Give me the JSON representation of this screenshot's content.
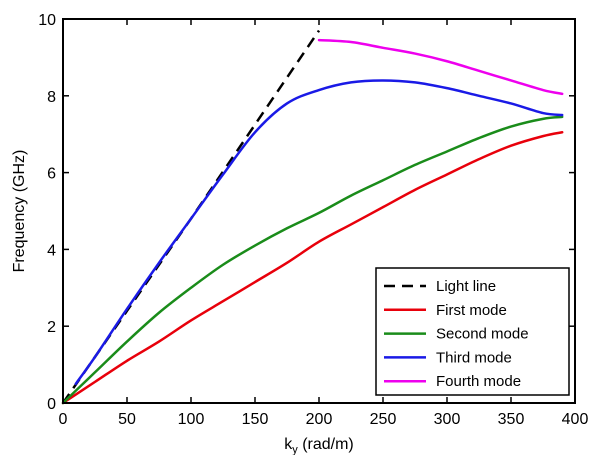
{
  "chart_data": {
    "type": "line",
    "xlabel": "k",
    "xlabel_sub": "y",
    "xlabel_unit": " (rad/m)",
    "ylabel": "Frequency (GHz)",
    "xlim": [
      0,
      400
    ],
    "ylim": [
      0,
      10
    ],
    "xticks": [
      "0",
      "50",
      "100",
      "150",
      "200",
      "250",
      "300",
      "350",
      "400"
    ],
    "yticks": [
      "0",
      "2",
      "4",
      "6",
      "8",
      "10"
    ],
    "grid": false,
    "legend_position": "bottom-right",
    "series": [
      {
        "name": "Light line",
        "color": "#000000",
        "dashed": true,
        "x": [
          0,
          50,
          100,
          150,
          200
        ],
        "y": [
          0,
          2.4,
          4.8,
          7.25,
          9.7
        ]
      },
      {
        "name": "First mode",
        "color": "#e8000b",
        "dashed": false,
        "x": [
          0,
          25,
          50,
          75,
          100,
          125,
          150,
          175,
          200,
          225,
          250,
          275,
          300,
          325,
          350,
          375,
          390
        ],
        "y": [
          0,
          0.55,
          1.1,
          1.6,
          2.15,
          2.65,
          3.15,
          3.65,
          4.2,
          4.65,
          5.1,
          5.55,
          5.95,
          6.35,
          6.7,
          6.95,
          7.05
        ]
      },
      {
        "name": "Second mode",
        "color": "#1a8c1a",
        "dashed": false,
        "x": [
          0,
          25,
          50,
          75,
          100,
          125,
          150,
          175,
          200,
          225,
          250,
          275,
          300,
          325,
          350,
          375,
          390
        ],
        "y": [
          0,
          0.8,
          1.6,
          2.35,
          3.0,
          3.6,
          4.1,
          4.55,
          4.95,
          5.4,
          5.8,
          6.2,
          6.55,
          6.9,
          7.2,
          7.4,
          7.45
        ]
      },
      {
        "name": "Third mode",
        "color": "#1a1ae6",
        "dashed": false,
        "x": [
          10,
          25,
          50,
          75,
          100,
          125,
          150,
          175,
          200,
          225,
          250,
          275,
          300,
          325,
          350,
          375,
          390
        ],
        "y": [
          0.5,
          1.2,
          2.45,
          3.65,
          4.8,
          5.95,
          7.05,
          7.8,
          8.15,
          8.35,
          8.4,
          8.35,
          8.2,
          8.0,
          7.8,
          7.55,
          7.5
        ]
      },
      {
        "name": "Fourth mode",
        "color": "#ee00ee",
        "dashed": false,
        "x": [
          200,
          225,
          250,
          275,
          300,
          325,
          350,
          375,
          390
        ],
        "y": [
          9.45,
          9.4,
          9.25,
          9.1,
          8.9,
          8.65,
          8.4,
          8.15,
          8.05
        ]
      }
    ]
  }
}
